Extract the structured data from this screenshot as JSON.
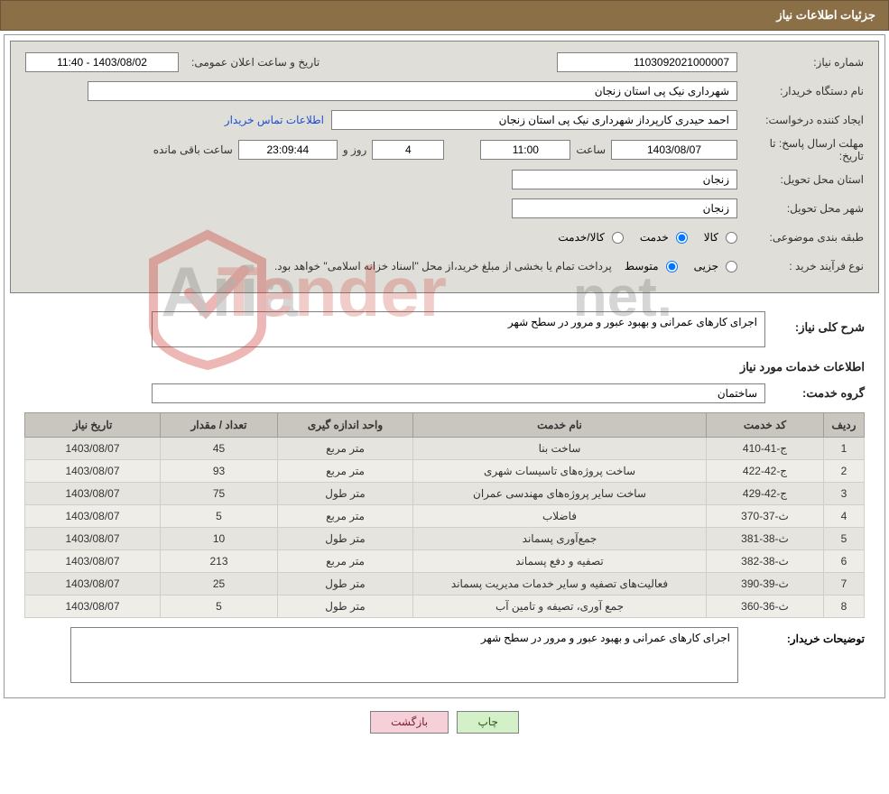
{
  "panel_title": "جزئیات اطلاعات نیاز",
  "fields": {
    "need_no_label": "شماره نیاز:",
    "need_no": "1103092021000007",
    "announce_label": "تاریخ و ساعت اعلان عمومی:",
    "announce_value": "1403/08/02 - 11:40",
    "buyer_org_label": "نام دستگاه خریدار:",
    "buyer_org": "شهرداری نیک پی استان زنجان",
    "requester_label": "ایجاد کننده درخواست:",
    "requester": "احمد حیدری کارپرداز شهرداری نیک پی استان زنجان",
    "contact_link": "اطلاعات تماس خریدار",
    "deadline_label": "مهلت ارسال پاسخ: تا تاریخ:",
    "deadline_date": "1403/08/07",
    "time_label": "ساعت",
    "deadline_time": "11:00",
    "days_remaining": "4",
    "days_label": "روز و",
    "countdown": "23:09:44",
    "remaining_label": "ساعت باقی مانده",
    "province_label": "استان محل تحویل:",
    "province": "زنجان",
    "city_label": "شهر محل تحویل:",
    "city": "زنجان",
    "topic_class_label": "طبقه بندی موضوعی:",
    "radio_goods": "کالا",
    "radio_service": "خدمت",
    "radio_both": "کالا/خدمت",
    "purchase_type_label": "نوع فرآیند خرید :",
    "radio_minor": "جزیی",
    "radio_medium": "متوسط",
    "payment_note": "پرداخت تمام یا بخشی از مبلغ خرید،از محل \"اسناد خزانه اسلامی\" خواهد بود."
  },
  "overview": {
    "label": "شرح کلی نیاز:",
    "text": "اجرای کارهای عمرانی و بهبود عبور و مرور در سطح شهر"
  },
  "services_section_title": "اطلاعات خدمات مورد نیاز",
  "service_group_label": "گروه خدمت:",
  "service_group": "ساختمان",
  "table": {
    "headers": {
      "idx": "ردیف",
      "code": "کد خدمت",
      "name": "نام خدمت",
      "unit": "واحد اندازه گیری",
      "qty": "تعداد / مقدار",
      "date": "تاریخ نیاز"
    },
    "rows": [
      {
        "idx": "1",
        "code": "ج-41-410",
        "name": "ساخت بنا",
        "unit": "متر مربع",
        "qty": "45",
        "date": "1403/08/07"
      },
      {
        "idx": "2",
        "code": "ج-42-422",
        "name": "ساخت پروژه‌های تاسیسات شهری",
        "unit": "متر مربع",
        "qty": "93",
        "date": "1403/08/07"
      },
      {
        "idx": "3",
        "code": "ج-42-429",
        "name": "ساخت سایر پروژه‌های مهندسی عمران",
        "unit": "متر طول",
        "qty": "75",
        "date": "1403/08/07"
      },
      {
        "idx": "4",
        "code": "ث-37-370",
        "name": "فاضلاب",
        "unit": "متر مربع",
        "qty": "5",
        "date": "1403/08/07"
      },
      {
        "idx": "5",
        "code": "ث-38-381",
        "name": "جمع‌آوری پسماند",
        "unit": "متر طول",
        "qty": "10",
        "date": "1403/08/07"
      },
      {
        "idx": "6",
        "code": "ث-38-382",
        "name": "تصفیه و دفع پسماند",
        "unit": "متر مربع",
        "qty": "213",
        "date": "1403/08/07"
      },
      {
        "idx": "7",
        "code": "ث-39-390",
        "name": "فعالیت‌های تصفیه و سایر خدمات مدیریت پسماند",
        "unit": "متر طول",
        "qty": "25",
        "date": "1403/08/07"
      },
      {
        "idx": "8",
        "code": "ث-36-360",
        "name": "جمع آوری، تصیفه و تامین آب",
        "unit": "متر طول",
        "qty": "5",
        "date": "1403/08/07"
      }
    ]
  },
  "buyer_notes_label": "توضیحات خریدار:",
  "buyer_notes": "اجرای کارهای عمرانی و بهبود عبور و مرور در سطح شهر",
  "buttons": {
    "print": "چاپ",
    "back": "بازگشت"
  },
  "watermark_text": "AriaTender.net",
  "colors": {
    "header_bg": "#8b6f47",
    "panel_bg": "#e0ded8",
    "th_bg": "#c8c6be",
    "row_odd": "#e6e4de",
    "row_even": "#eeede8",
    "btn_print_bg": "#d4f0c8",
    "btn_back_bg": "#f5d0d8",
    "link": "#1a4fd0",
    "watermark": "#c9352b"
  }
}
